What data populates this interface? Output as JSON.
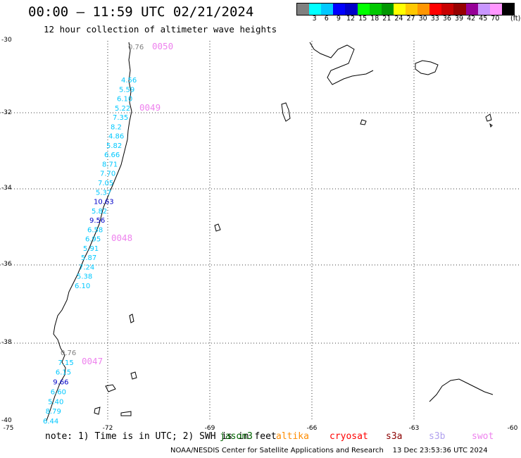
{
  "header": {
    "title": "00:00 – 11:59 UTC 02/21/2024",
    "subtitle": "12 hour collection of altimeter wave heights"
  },
  "legend": {
    "colors": [
      "#808080",
      "#00ffff",
      "#00c8ff",
      "#0000ff",
      "#0000c8",
      "#00ff00",
      "#00c800",
      "#009600",
      "#ffff00",
      "#ffc800",
      "#ff9600",
      "#ff0000",
      "#c80000",
      "#960000",
      "#960096",
      "#c896ff",
      "#ff96ff",
      "#000000"
    ],
    "labels": [
      "3",
      "6",
      "9",
      "12",
      "15",
      "18",
      "21",
      "24",
      "27",
      "30",
      "33",
      "36",
      "39",
      "42",
      "45",
      "70"
    ],
    "unit": "(ft)"
  },
  "axes": {
    "lat_labels": [
      "-30",
      "-32",
      "-34",
      "-36",
      "-38",
      "-40"
    ],
    "lon_labels": [
      "-75",
      "-72",
      "-69",
      "-66",
      "-63",
      "-60"
    ]
  },
  "passes": [
    "0050",
    "0049",
    "0048",
    "0047"
  ],
  "swh_tracks": [
    {
      "pass": "0050",
      "points": [
        {
          "v": "0.76",
          "c": "#808080"
        }
      ]
    },
    {
      "pass": "0049",
      "points": [
        {
          "v": "4.56",
          "c": "#00c8ff"
        },
        {
          "v": "5.59",
          "c": "#00c8ff"
        },
        {
          "v": "6.10",
          "c": "#00c8ff"
        },
        {
          "v": "5.22",
          "c": "#00c8ff"
        },
        {
          "v": "7.35",
          "c": "#00c8ff"
        },
        {
          "v": "8.2",
          "c": "#00c8ff"
        },
        {
          "v": "4.86",
          "c": "#00c8ff"
        },
        {
          "v": "5.82",
          "c": "#00c8ff"
        },
        {
          "v": "6.66",
          "c": "#00c8ff"
        },
        {
          "v": "8.71",
          "c": "#00c8ff"
        },
        {
          "v": "7.70",
          "c": "#00c8ff"
        },
        {
          "v": "7.05",
          "c": "#00c8ff"
        },
        {
          "v": "5.37",
          "c": "#00c8ff"
        },
        {
          "v": "10.63",
          "c": "#0000c8"
        },
        {
          "v": "5.82",
          "c": "#00c8ff"
        },
        {
          "v": "9.56",
          "c": "#0000c8"
        },
        {
          "v": "6.58",
          "c": "#00c8ff"
        },
        {
          "v": "6.95",
          "c": "#00c8ff"
        },
        {
          "v": "5.91",
          "c": "#00c8ff"
        },
        {
          "v": "5.87",
          "c": "#00c8ff"
        },
        {
          "v": "7.24",
          "c": "#00c8ff"
        },
        {
          "v": "5.38",
          "c": "#00c8ff"
        },
        {
          "v": "6.10",
          "c": "#00c8ff"
        }
      ]
    },
    {
      "pass": "0047",
      "points": [
        {
          "v": "0.76",
          "c": "#808080"
        },
        {
          "v": "7.15",
          "c": "#00c8ff"
        },
        {
          "v": "6.15",
          "c": "#00c8ff"
        },
        {
          "v": "9.66",
          "c": "#0000c8"
        },
        {
          "v": "6.60",
          "c": "#00c8ff"
        },
        {
          "v": "5.40",
          "c": "#00c8ff"
        },
        {
          "v": "8.79",
          "c": "#00c8ff"
        },
        {
          "v": "6.44",
          "c": "#00c8ff"
        }
      ]
    }
  ],
  "note": "note: 1) Time is in UTC; 2) SWH is in feet",
  "satellites": [
    {
      "name": "jason3",
      "color": "#006400"
    },
    {
      "name": "altika",
      "color": "#ff8c00"
    },
    {
      "name": "cryosat",
      "color": "#ff0000"
    },
    {
      "name": "s3a",
      "color": "#8b0000"
    },
    {
      "name": "s3b",
      "color": "#b0a0ee"
    },
    {
      "name": "swot",
      "color": "#ee82ee"
    }
  ],
  "footer": {
    "agency": "NOAA/NESDIS Center for Satellite Applications and Research",
    "timestamp": "13 Dec 23:53:36 UTC 2024"
  }
}
